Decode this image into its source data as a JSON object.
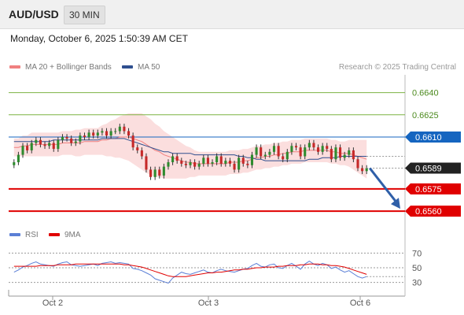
{
  "header": {
    "symbol": "AUD/USD",
    "timeframe": "30 MIN"
  },
  "datetime": "Monday, October 6, 2025 1:50:39 AM CET",
  "legend": {
    "ma20": {
      "label": "MA 20 + Bollinger Bands",
      "color": "#f08080"
    },
    "ma50": {
      "label": "MA 50",
      "color": "#2f4f8f"
    },
    "rsi": {
      "label": "RSI",
      "color": "#5b7fd6"
    },
    "ma9": {
      "label": "9MA",
      "color": "#e00000"
    }
  },
  "credit": "Research © 2025 Trading Central",
  "chart_data": [
    {
      "type": "candlestick",
      "ylim": [
        0.6551,
        0.6652
      ],
      "price_levels": [
        {
          "value": 0.664,
          "label": "0.6640",
          "kind": "resistance",
          "color": "#7cb342"
        },
        {
          "value": 0.6625,
          "label": "0.6625",
          "kind": "resistance",
          "color": "#7cb342"
        },
        {
          "value": 0.661,
          "label": "0.6610",
          "kind": "pivot",
          "color": "#1565c0"
        },
        {
          "value": 0.6575,
          "label": "0.6575",
          "kind": "support",
          "color": "#e00000"
        },
        {
          "value": 0.656,
          "label": "0.6560",
          "kind": "support",
          "color": "#e00000"
        }
      ],
      "last_price": {
        "value": 0.6589,
        "label": "0.6589"
      },
      "forecast_arrow": {
        "from": 0.6589,
        "to": 0.656,
        "direction": "down"
      },
      "close": [
        0.6593,
        0.6598,
        0.6604,
        0.6601,
        0.6606,
        0.6608,
        0.6605,
        0.6604,
        0.6606,
        0.6602,
        0.6608,
        0.661,
        0.6609,
        0.6606,
        0.6607,
        0.6611,
        0.661,
        0.6613,
        0.6611,
        0.6613,
        0.6614,
        0.6611,
        0.6614,
        0.6614,
        0.6617,
        0.6614,
        0.6611,
        0.6603,
        0.6601,
        0.6597,
        0.6588,
        0.6583,
        0.6588,
        0.6584,
        0.659,
        0.6593,
        0.6597,
        0.6594,
        0.6592,
        0.6591,
        0.6593,
        0.659,
        0.6592,
        0.6596,
        0.6592,
        0.6593,
        0.6597,
        0.6592,
        0.6594,
        0.6592,
        0.6588,
        0.6596,
        0.6592,
        0.6591,
        0.6598,
        0.6603,
        0.6597,
        0.6598,
        0.66,
        0.6604,
        0.6597,
        0.6595,
        0.66,
        0.6604,
        0.6603,
        0.6597,
        0.6603,
        0.6606,
        0.6603,
        0.66,
        0.6604,
        0.6602,
        0.6595,
        0.6603,
        0.6596,
        0.6598,
        0.6601,
        0.6595,
        0.6589,
        0.6587,
        0.6589
      ],
      "ma20": [
        0.6603,
        0.6603,
        0.6604,
        0.6604,
        0.6605,
        0.6605,
        0.6605,
        0.6605,
        0.6605,
        0.6605,
        0.6605,
        0.6606,
        0.6606,
        0.6606,
        0.6606,
        0.6606,
        0.6607,
        0.6607,
        0.6607,
        0.6607,
        0.6608,
        0.6608,
        0.6609,
        0.6609,
        0.661,
        0.661,
        0.661,
        0.6609,
        0.6608,
        0.6607,
        0.6605,
        0.6603,
        0.6601,
        0.66,
        0.6598,
        0.6597,
        0.6596,
        0.6595,
        0.6594,
        0.6593,
        0.6593,
        0.6592,
        0.6592,
        0.6592,
        0.6592,
        0.6592,
        0.6592,
        0.6592,
        0.6592,
        0.6593,
        0.6593,
        0.6593,
        0.6594,
        0.6594,
        0.6595,
        0.6596,
        0.6596,
        0.6597,
        0.6597,
        0.6598,
        0.6598,
        0.6599,
        0.6599,
        0.66,
        0.66,
        0.66,
        0.6601,
        0.6601,
        0.6601,
        0.6601,
        0.6601,
        0.6601,
        0.66,
        0.66,
        0.6599,
        0.6599,
        0.6599,
        0.6598,
        0.6597,
        0.6596,
        0.6595
      ],
      "ma50": [
        0.6607,
        0.6607,
        0.6607,
        0.6607,
        0.6607,
        0.6607,
        0.6607,
        0.6607,
        0.6607,
        0.6608,
        0.6608,
        0.6608,
        0.6608,
        0.6608,
        0.6608,
        0.6608,
        0.6608,
        0.6608,
        0.6608,
        0.6608,
        0.6609,
        0.6609,
        0.6609,
        0.6609,
        0.6609,
        0.6609,
        0.6608,
        0.6607,
        0.6606,
        0.6605,
        0.6604,
        0.6603,
        0.6602,
        0.6601,
        0.66,
        0.66,
        0.6599,
        0.6599,
        0.6599,
        0.6599,
        0.6599,
        0.6598,
        0.6598,
        0.6598,
        0.6598,
        0.6598,
        0.6598,
        0.6598,
        0.6598,
        0.6598,
        0.6598,
        0.6597,
        0.6597,
        0.6596,
        0.6596,
        0.6595,
        0.6595,
        0.6594,
        0.6594,
        0.6594,
        0.6594,
        0.6594,
        0.6594,
        0.6594,
        0.6594,
        0.6594,
        0.6594,
        0.6595,
        0.6595,
        0.6595,
        0.6596,
        0.6596,
        0.6596,
        0.6596,
        0.6597,
        0.6597,
        0.6597,
        0.6597,
        0.6597,
        0.6597,
        0.6597
      ],
      "bb_width": [
        0.0006,
        0.0006,
        0.0007,
        0.0007,
        0.0008,
        0.0008,
        0.0008,
        0.0008,
        0.0008,
        0.0008,
        0.0008,
        0.0008,
        0.0008,
        0.0008,
        0.0009,
        0.0009,
        0.0009,
        0.0009,
        0.0009,
        0.0009,
        0.001,
        0.0011,
        0.0012,
        0.0013,
        0.0014,
        0.0015,
        0.0016,
        0.0017,
        0.0018,
        0.0019,
        0.0019,
        0.0019,
        0.0018,
        0.0017,
        0.0016,
        0.0015,
        0.0014,
        0.0013,
        0.0012,
        0.0011,
        0.001,
        0.0009,
        0.0008,
        0.0008,
        0.0008,
        0.0008,
        0.0008,
        0.0008,
        0.0008,
        0.0008,
        0.0008,
        0.0008,
        0.0008,
        0.0008,
        0.0008,
        0.0008,
        0.0008,
        0.0008,
        0.0008,
        0.0008,
        0.0008,
        0.0008,
        0.0008,
        0.0008,
        0.0008,
        0.0008,
        0.0008,
        0.0008,
        0.0008,
        0.0008,
        0.0008,
        0.0008,
        0.0008,
        0.0008,
        0.0008,
        0.0008,
        0.0009,
        0.001,
        0.0011,
        0.0012,
        0.0013
      ]
    },
    {
      "type": "line",
      "ylim": [
        20,
        80
      ],
      "yticks": [
        70,
        50,
        30
      ],
      "ytick_labels": [
        "70",
        "50",
        "30"
      ],
      "x_labels": [
        "Oct 2",
        "Oct 3",
        "Oct 6"
      ],
      "series": [
        {
          "name": "RSI",
          "color": "#5b7fd6",
          "values": [
            44,
            47,
            51,
            53,
            56,
            58,
            55,
            54,
            53,
            52,
            55,
            57,
            58,
            54,
            53,
            52,
            53,
            54,
            55,
            53,
            56,
            57,
            58,
            56,
            57,
            56,
            55,
            49,
            48,
            46,
            43,
            40,
            35,
            33,
            31,
            29,
            36,
            40,
            44,
            42,
            41,
            43,
            45,
            47,
            44,
            43,
            46,
            48,
            46,
            45,
            44,
            46,
            48,
            49,
            53,
            56,
            52,
            51,
            54,
            55,
            50,
            49,
            53,
            56,
            52,
            48,
            55,
            59,
            55,
            53,
            56,
            54,
            49,
            51,
            47,
            44,
            46,
            42,
            38,
            36,
            38
          ]
        },
        {
          "name": "9MA",
          "color": "#e00000",
          "values": [
            52,
            52,
            52,
            52,
            52,
            52,
            53,
            53,
            53,
            53,
            54,
            54,
            54,
            54,
            55,
            55,
            55,
            55,
            55,
            55,
            55,
            55,
            55,
            55,
            55,
            54,
            54,
            53,
            52,
            51,
            49,
            47,
            45,
            43,
            41,
            39,
            38,
            38,
            38,
            38,
            39,
            40,
            41,
            42,
            43,
            43,
            44,
            44,
            45,
            46,
            47,
            47,
            48,
            48,
            49,
            50,
            50,
            51,
            51,
            51,
            52,
            52,
            53,
            53,
            53,
            54,
            54,
            55,
            55,
            55,
            54,
            54,
            53,
            53,
            52,
            51,
            49,
            47,
            45,
            43,
            41
          ]
        }
      ]
    }
  ]
}
